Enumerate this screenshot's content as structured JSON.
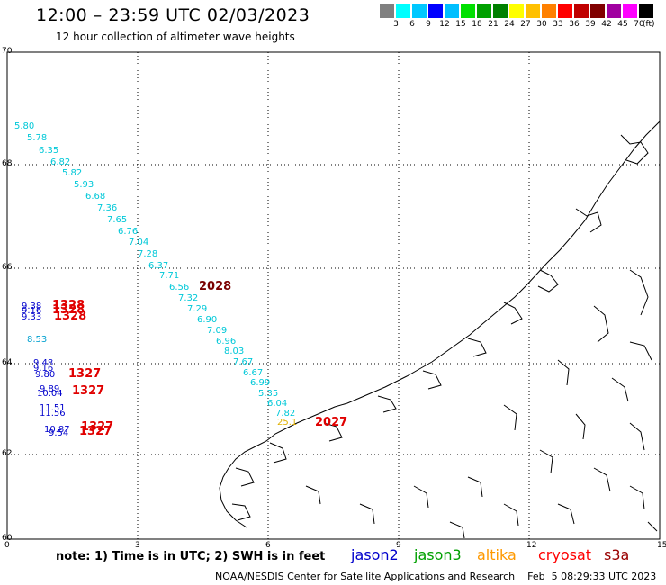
{
  "header": {
    "title": "12:00 – 23:59 UTC 02/03/2023",
    "subtitle": "12 hour collection of altimeter wave heights"
  },
  "color_scale": {
    "labels": [
      "3",
      "6",
      "9",
      "12",
      "15",
      "18",
      "21",
      "24",
      "27",
      "30",
      "33",
      "36",
      "39",
      "42",
      "45",
      "70"
    ],
    "colors": [
      "#808080",
      "#00ffff",
      "#00c8ff",
      "#0000ff",
      "#00bfff",
      "#00e000",
      "#00a000",
      "#008000",
      "#ffff00",
      "#ffc000",
      "#ff8000",
      "#ff0000",
      "#c00000",
      "#800000",
      "#a000a0",
      "#ff00ff",
      "#000000"
    ],
    "unit": "(ft)"
  },
  "axes": {
    "lat_labels": [
      "70",
      "68",
      "66",
      "64",
      "62",
      "60"
    ],
    "lon_labels": [
      "0",
      "3",
      "6",
      "9",
      "12",
      "15"
    ]
  },
  "wave_heights": {
    "jason3_cyan": [
      "5.80",
      "5.78",
      "6.35",
      "6.82",
      "5.82",
      "5.93",
      "6.68",
      "7.36",
      "7.65",
      "6.76",
      "7.04",
      "7.28",
      "6.37",
      "7.71",
      "6.56",
      "7.32",
      "7.29",
      "6.90",
      "7.09",
      "6.96",
      "8.03",
      "7.67",
      "6.67",
      "6.99",
      "5.35",
      "6.04",
      "7.82"
    ],
    "blue_left": [
      "9.38",
      "9.16",
      "9.33",
      "8.53",
      "9.48",
      "9.16",
      "9.80",
      "9.89",
      "10.04",
      "11.51",
      "11.56",
      "10.87",
      "9.54"
    ],
    "time_labels_red": [
      "1328",
      "1328",
      "1328",
      "1327",
      "1327",
      "1327",
      "1327",
      "2027"
    ],
    "time_labels_darkred": [
      "2028"
    ],
    "altika_value": "25.1"
  },
  "legend": {
    "note": "note: 1) Time is in UTC; 2) SWH is in feet",
    "satellites": [
      {
        "name": "jason2",
        "color": "#0000cc"
      },
      {
        "name": "jason3",
        "color": "#00a000"
      },
      {
        "name": "altika",
        "color": "#ff9900"
      },
      {
        "name": "cryosat",
        "color": "#ff0000"
      },
      {
        "name": "s3a",
        "color": "#990000"
      }
    ]
  },
  "footer": "NOAA/NESDIS Center for Satellite Applications and Research    Feb  5 08:29:33 UTC 2023"
}
